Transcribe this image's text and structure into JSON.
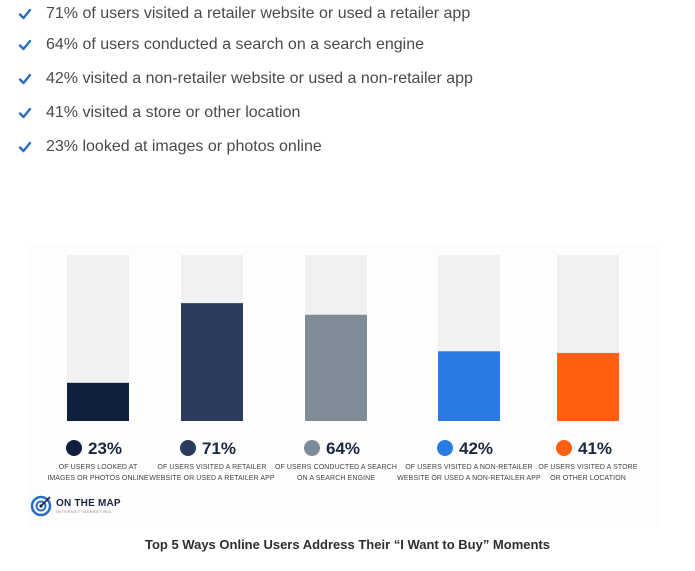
{
  "checklist": [
    "71% of users visited a retailer website or used a retailer app",
    "64% of users conducted a search on a search engine",
    "42% visited a non-retailer website or used a non-retailer app",
    "41% visited a store or other location",
    "23% looked at images or photos online"
  ],
  "check_color": "#2b6cc4",
  "chart_data": {
    "type": "bar",
    "title": "",
    "ylim": [
      0,
      100
    ],
    "grid": false,
    "categories": [
      "OF USERS LOOKED AT IMAGES OR PHOTOS ONLINE",
      "OF USERS VISITED A RETAILER WEBSITE OR USED A RETAILER APP",
      "OF USERS CONDUCTED A SEARCH ON A SEARCH ENGINE",
      "OF USERS VISITED A NON-RETAILER WEBSITE OR USED A NON-RETAILER APP",
      "OF USERS VISITED A STORE OR OTHER LOCATION"
    ],
    "category_lines": [
      [
        "OF USERS LOOKED AT",
        "IMAGES OR PHOTOS ONLINE"
      ],
      [
        "OF USERS VISITED A RETAILER",
        "WEBSITE OR USED A RETAILER APP"
      ],
      [
        "OF USERS CONDUCTED A SEARCH",
        "ON A SEARCH ENGINE"
      ],
      [
        "OF USERS VISITED A NON-RETAILER",
        "WEBSITE OR USED A NON-RETAILER APP"
      ],
      [
        "OF USERS VISITED A STORE",
        "OR OTHER LOCATION"
      ]
    ],
    "values": [
      23,
      71,
      64,
      42,
      41
    ],
    "value_labels": [
      "23%",
      "71%",
      "64%",
      "42%",
      "41%"
    ],
    "colors": [
      "#0f1f3d",
      "#2a3b5c",
      "#7f8b96",
      "#2b7be4",
      "#ff5f0f"
    ],
    "track_color": "#f1f1f1"
  },
  "logo": {
    "name": "ON THE MAP",
    "sub": "INTERNET MARKETING"
  },
  "caption": "Top 5 Ways Online Users Address Their “I Want to Buy” Moments"
}
